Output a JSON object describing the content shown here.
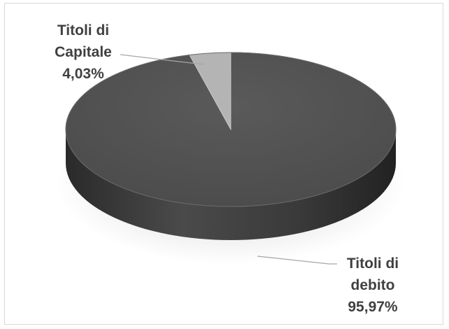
{
  "chart_data": {
    "type": "pie",
    "style": "3d",
    "slices": [
      {
        "label_lines": [
          "Titoli di",
          "debito"
        ],
        "percent_label": "95,97%",
        "value": 95.97,
        "color": "#4a4a4a"
      },
      {
        "label_lines": [
          "Titoli di",
          "Capitale"
        ],
        "percent_label": "4,03%",
        "value": 4.03,
        "color": "#b4b4b4"
      }
    ],
    "legend": "none"
  }
}
